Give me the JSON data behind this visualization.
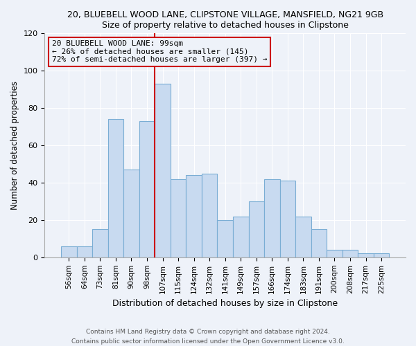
{
  "title1": "20, BLUEBELL WOOD LANE, CLIPSTONE VILLAGE, MANSFIELD, NG21 9GB",
  "title2": "Size of property relative to detached houses in Clipstone",
  "xlabel": "Distribution of detached houses by size in Clipstone",
  "ylabel": "Number of detached properties",
  "bar_labels": [
    "56sqm",
    "64sqm",
    "73sqm",
    "81sqm",
    "90sqm",
    "98sqm",
    "107sqm",
    "115sqm",
    "124sqm",
    "132sqm",
    "141sqm",
    "149sqm",
    "157sqm",
    "166sqm",
    "174sqm",
    "183sqm",
    "191sqm",
    "200sqm",
    "208sqm",
    "217sqm",
    "225sqm"
  ],
  "bar_values": [
    6,
    6,
    15,
    74,
    47,
    73,
    93,
    42,
    44,
    45,
    20,
    22,
    30,
    42,
    41,
    22,
    15,
    4,
    4,
    2,
    2
  ],
  "bar_color": "#c8daf0",
  "bar_edge_color": "#7aadd4",
  "vline_x": 5.5,
  "vline_color": "#cc0000",
  "annotation_text": "20 BLUEBELL WOOD LANE: 99sqm\n← 26% of detached houses are smaller (145)\n72% of semi-detached houses are larger (397) →",
  "annotation_box_edge": "#cc0000",
  "ylim": [
    0,
    120
  ],
  "yticks": [
    0,
    20,
    40,
    60,
    80,
    100,
    120
  ],
  "footer1": "Contains HM Land Registry data © Crown copyright and database right 2024.",
  "footer2": "Contains public sector information licensed under the Open Government Licence v3.0.",
  "bg_color": "#eef2f9"
}
